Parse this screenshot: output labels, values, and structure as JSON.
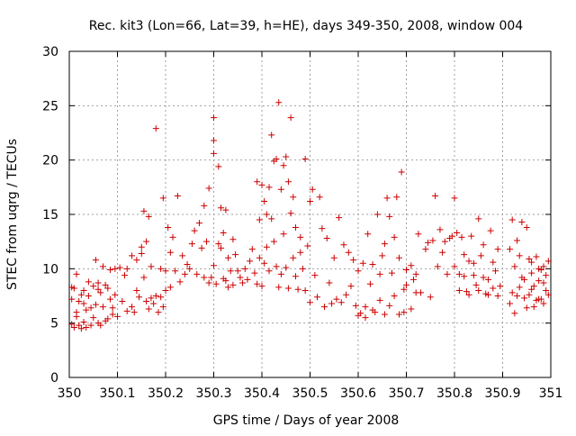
{
  "chart_data": {
    "type": "scatter",
    "title": "Rec. kit3 (Lon=66, Lat=39, h=HE), days 349-350, 2008, window 004",
    "xlabel": "GPS time / Days of year 2008",
    "ylabel": "STEC from uqrg / TECUs",
    "xlim": [
      350,
      351
    ],
    "ylim": [
      0,
      30
    ],
    "xticks": [
      350,
      350.1,
      350.2,
      350.3,
      350.4,
      350.5,
      350.6,
      350.7,
      350.8,
      350.9,
      351
    ],
    "xtick_labels": [
      "350",
      "350.1",
      "350.2",
      "350.3",
      "350.4",
      "350.5",
      "350.6",
      "350.7",
      "350.8",
      "350.9",
      "351"
    ],
    "yticks": [
      0,
      5,
      10,
      15,
      20,
      25,
      30
    ],
    "ytick_labels": [
      "0",
      "5",
      "10",
      "15",
      "20",
      "25",
      "30"
    ],
    "grid": true,
    "marker": "+",
    "color": "#cc0000",
    "points": [
      [
        350.005,
        4.9
      ],
      [
        350.01,
        4.6
      ],
      [
        350.015,
        5.6
      ],
      [
        350.02,
        4.8
      ],
      [
        350.025,
        4.5
      ],
      [
        350.03,
        5.1
      ],
      [
        350.035,
        4.6
      ],
      [
        350.045,
        4.8
      ],
      [
        350.05,
        5.5
      ],
      [
        350.06,
        5.0
      ],
      [
        350.065,
        4.8
      ],
      [
        350.075,
        5.2
      ],
      [
        350.08,
        5.4
      ],
      [
        350.09,
        5.8
      ],
      [
        350.1,
        5.6
      ],
      [
        350.005,
        7.2
      ],
      [
        350.01,
        8.2
      ],
      [
        350.015,
        9.5
      ],
      [
        350.02,
        7.0
      ],
      [
        350.025,
        7.6
      ],
      [
        350.03,
        6.8
      ],
      [
        350.035,
        6.2
      ],
      [
        350.04,
        7.5
      ],
      [
        350.045,
        6.4
      ],
      [
        350.05,
        8.4
      ],
      [
        350.055,
        6.7
      ],
      [
        350.06,
        8.1
      ],
      [
        350.065,
        7.8
      ],
      [
        350.07,
        6.5
      ],
      [
        350.08,
        8.2
      ],
      [
        350.085,
        7.2
      ],
      [
        350.09,
        6.4
      ],
      [
        350.095,
        7.6
      ],
      [
        350.11,
        7.0
      ],
      [
        350.005,
        8.3
      ],
      [
        350.015,
        6.0
      ],
      [
        350.03,
        8.0
      ],
      [
        350.04,
        8.8
      ],
      [
        350.055,
        10.8
      ],
      [
        350.06,
        8.7
      ],
      [
        350.07,
        10.2
      ],
      [
        350.075,
        8.5
      ],
      [
        350.085,
        9.9
      ],
      [
        350.095,
        10.0
      ],
      [
        350.105,
        10.1
      ],
      [
        350.115,
        9.4
      ],
      [
        350.12,
        10.0
      ],
      [
        350.12,
        6.1
      ],
      [
        350.13,
        6.5
      ],
      [
        350.135,
        6.0
      ],
      [
        350.14,
        8.0
      ],
      [
        350.145,
        7.4
      ],
      [
        350.15,
        11.4
      ],
      [
        350.155,
        9.2
      ],
      [
        350.16,
        7.0
      ],
      [
        350.165,
        6.3
      ],
      [
        350.17,
        7.3
      ],
      [
        350.175,
        6.8
      ],
      [
        350.18,
        7.5
      ],
      [
        350.185,
        6.0
      ],
      [
        350.19,
        7.4
      ],
      [
        350.195,
        6.5
      ],
      [
        350.13,
        11.2
      ],
      [
        350.14,
        10.8
      ],
      [
        350.15,
        12.0
      ],
      [
        350.155,
        15.3
      ],
      [
        350.16,
        12.5
      ],
      [
        350.165,
        14.8
      ],
      [
        350.17,
        10.2
      ],
      [
        350.18,
        22.9
      ],
      [
        350.19,
        10.0
      ],
      [
        350.195,
        16.5
      ],
      [
        350.2,
        9.8
      ],
      [
        350.21,
        11.5
      ],
      [
        350.215,
        12.9
      ],
      [
        350.2,
        8.0
      ],
      [
        350.205,
        13.8
      ],
      [
        350.21,
        8.3
      ],
      [
        350.22,
        9.8
      ],
      [
        350.225,
        16.7
      ],
      [
        350.23,
        8.8
      ],
      [
        350.235,
        11.2
      ],
      [
        350.24,
        9.5
      ],
      [
        350.245,
        10.4
      ],
      [
        350.25,
        10.0
      ],
      [
        350.255,
        12.3
      ],
      [
        350.26,
        13.5
      ],
      [
        350.265,
        9.5
      ],
      [
        350.27,
        14.2
      ],
      [
        350.275,
        11.9
      ],
      [
        350.28,
        9.2
      ],
      [
        350.285,
        12.5
      ],
      [
        350.29,
        8.7
      ],
      [
        350.295,
        9.2
      ],
      [
        350.3,
        10.3
      ],
      [
        350.305,
        8.6
      ],
      [
        350.31,
        12.3
      ],
      [
        350.315,
        11.9
      ],
      [
        350.32,
        9.1
      ],
      [
        350.325,
        8.9
      ],
      [
        350.33,
        8.3
      ],
      [
        350.335,
        9.8
      ],
      [
        350.34,
        8.5
      ],
      [
        350.28,
        15.8
      ],
      [
        350.29,
        17.4
      ],
      [
        350.3,
        20.6
      ],
      [
        350.3,
        21.8
      ],
      [
        350.3,
        23.9
      ],
      [
        350.31,
        19.4
      ],
      [
        350.315,
        15.6
      ],
      [
        350.32,
        13.3
      ],
      [
        350.325,
        15.4
      ],
      [
        350.33,
        11.0
      ],
      [
        350.34,
        12.7
      ],
      [
        350.345,
        11.3
      ],
      [
        350.35,
        9.8
      ],
      [
        350.355,
        9.2
      ],
      [
        350.36,
        8.7
      ],
      [
        350.365,
        10.0
      ],
      [
        350.37,
        9.0
      ],
      [
        350.375,
        10.7
      ],
      [
        350.38,
        11.8
      ],
      [
        350.385,
        9.6
      ],
      [
        350.39,
        8.6
      ],
      [
        350.395,
        11.0
      ],
      [
        350.39,
        18.0
      ],
      [
        350.395,
        14.5
      ],
      [
        350.4,
        17.7
      ],
      [
        350.405,
        16.2
      ],
      [
        350.41,
        15.0
      ],
      [
        350.415,
        17.5
      ],
      [
        350.42,
        22.3
      ],
      [
        350.425,
        19.9
      ],
      [
        350.43,
        20.1
      ],
      [
        350.435,
        25.3
      ],
      [
        350.44,
        17.3
      ],
      [
        350.445,
        19.5
      ],
      [
        350.45,
        20.3
      ],
      [
        350.455,
        18.0
      ],
      [
        350.46,
        23.9
      ],
      [
        350.465,
        16.6
      ],
      [
        350.47,
        13.8
      ],
      [
        350.48,
        12.9
      ],
      [
        350.49,
        20.1
      ],
      [
        350.5,
        16.2
      ],
      [
        350.4,
        8.4
      ],
      [
        350.405,
        10.5
      ],
      [
        350.41,
        12.0
      ],
      [
        350.415,
        9.8
      ],
      [
        350.42,
        14.6
      ],
      [
        350.425,
        12.5
      ],
      [
        350.43,
        10.2
      ],
      [
        350.435,
        8.3
      ],
      [
        350.44,
        9.5
      ],
      [
        350.445,
        13.2
      ],
      [
        350.45,
        10.1
      ],
      [
        350.455,
        8.2
      ],
      [
        350.46,
        15.1
      ],
      [
        350.465,
        11.0
      ],
      [
        350.47,
        9.3
      ],
      [
        350.475,
        8.1
      ],
      [
        350.48,
        11.5
      ],
      [
        350.485,
        10.0
      ],
      [
        350.49,
        8.0
      ],
      [
        350.495,
        12.1
      ],
      [
        350.5,
        6.9
      ],
      [
        350.505,
        17.3
      ],
      [
        350.51,
        9.4
      ],
      [
        350.515,
        7.4
      ],
      [
        350.52,
        16.6
      ],
      [
        350.525,
        13.7
      ],
      [
        350.53,
        6.5
      ],
      [
        350.535,
        12.8
      ],
      [
        350.54,
        8.7
      ],
      [
        350.545,
        6.8
      ],
      [
        350.55,
        11.0
      ],
      [
        350.555,
        7.2
      ],
      [
        350.56,
        14.7
      ],
      [
        350.565,
        6.9
      ],
      [
        350.57,
        12.2
      ],
      [
        350.575,
        7.6
      ],
      [
        350.58,
        11.5
      ],
      [
        350.585,
        8.4
      ],
      [
        350.59,
        10.8
      ],
      [
        350.595,
        6.6
      ],
      [
        350.6,
        9.8
      ],
      [
        350.605,
        5.9
      ],
      [
        350.61,
        10.5
      ],
      [
        350.615,
        6.5
      ],
      [
        350.62,
        13.2
      ],
      [
        350.625,
        8.6
      ],
      [
        350.63,
        10.4
      ],
      [
        350.635,
        6.0
      ],
      [
        350.64,
        15.0
      ],
      [
        350.645,
        9.5
      ],
      [
        350.65,
        11.2
      ],
      [
        350.655,
        12.3
      ],
      [
        350.66,
        16.5
      ],
      [
        350.665,
        14.8
      ],
      [
        350.67,
        9.6
      ],
      [
        350.675,
        12.9
      ],
      [
        350.68,
        16.6
      ],
      [
        350.685,
        11.0
      ],
      [
        350.69,
        18.9
      ],
      [
        350.695,
        8.1
      ],
      [
        350.6,
        5.7
      ],
      [
        350.615,
        5.5
      ],
      [
        350.63,
        6.2
      ],
      [
        350.645,
        7.1
      ],
      [
        350.655,
        5.8
      ],
      [
        350.665,
        6.6
      ],
      [
        350.675,
        7.5
      ],
      [
        350.685,
        5.8
      ],
      [
        350.695,
        6.0
      ],
      [
        350.7,
        8.5
      ],
      [
        350.71,
        6.3
      ],
      [
        350.72,
        7.8
      ],
      [
        350.7,
        9.9
      ],
      [
        350.71,
        10.3
      ],
      [
        350.715,
        9.0
      ],
      [
        350.72,
        9.5
      ],
      [
        350.725,
        13.2
      ],
      [
        350.73,
        7.8
      ],
      [
        350.74,
        11.8
      ],
      [
        350.745,
        12.4
      ],
      [
        350.75,
        7.4
      ],
      [
        350.755,
        12.6
      ],
      [
        350.76,
        16.7
      ],
      [
        350.765,
        10.2
      ],
      [
        350.77,
        13.6
      ],
      [
        350.775,
        11.5
      ],
      [
        350.78,
        12.5
      ],
      [
        350.785,
        9.5
      ],
      [
        350.79,
        12.8
      ],
      [
        350.795,
        13.0
      ],
      [
        350.8,
        16.5
      ],
      [
        350.805,
        13.3
      ],
      [
        350.81,
        8.0
      ],
      [
        350.815,
        12.9
      ],
      [
        350.82,
        9.3
      ],
      [
        350.825,
        7.9
      ],
      [
        350.83,
        10.7
      ],
      [
        350.835,
        13.0
      ],
      [
        350.84,
        9.4
      ],
      [
        350.845,
        8.5
      ],
      [
        350.85,
        14.6
      ],
      [
        350.855,
        11.2
      ],
      [
        350.86,
        12.2
      ],
      [
        350.865,
        7.7
      ],
      [
        350.87,
        9.0
      ],
      [
        350.875,
        13.5
      ],
      [
        350.88,
        10.6
      ],
      [
        350.885,
        9.8
      ],
      [
        350.89,
        11.8
      ],
      [
        350.895,
        8.4
      ],
      [
        350.8,
        10.2
      ],
      [
        350.81,
        9.5
      ],
      [
        350.82,
        11.3
      ],
      [
        350.83,
        7.6
      ],
      [
        350.84,
        10.5
      ],
      [
        350.85,
        8.0
      ],
      [
        350.86,
        9.2
      ],
      [
        350.87,
        7.6
      ],
      [
        350.88,
        8.2
      ],
      [
        350.89,
        7.5
      ],
      [
        350.915,
        6.8
      ],
      [
        350.92,
        14.5
      ],
      [
        350.925,
        5.9
      ],
      [
        350.93,
        12.6
      ],
      [
        350.935,
        11.2
      ],
      [
        350.94,
        14.3
      ],
      [
        350.945,
        7.3
      ],
      [
        350.95,
        13.8
      ],
      [
        350.955,
        10.9
      ],
      [
        350.96,
        9.6
      ],
      [
        350.965,
        8.4
      ],
      [
        350.97,
        11.1
      ],
      [
        350.975,
        7.2
      ],
      [
        350.98,
        9.9
      ],
      [
        350.985,
        10.2
      ],
      [
        350.99,
        8.0
      ],
      [
        350.995,
        10.7
      ],
      [
        350.915,
        11.8
      ],
      [
        350.925,
        10.2
      ],
      [
        350.93,
        7.5
      ],
      [
        350.94,
        9.2
      ],
      [
        350.95,
        6.4
      ],
      [
        350.955,
        7.6
      ],
      [
        350.96,
        8.1
      ],
      [
        350.965,
        6.5
      ],
      [
        350.97,
        7.1
      ],
      [
        350.975,
        8.9
      ],
      [
        350.98,
        7.2
      ],
      [
        350.985,
        6.8
      ],
      [
        350.99,
        9.4
      ],
      [
        350.995,
        7.6
      ],
      [
        350.92,
        7.8
      ],
      [
        350.935,
        8.3
      ],
      [
        350.945,
        9.0
      ],
      [
        350.96,
        10.6
      ],
      [
        350.975,
        10.0
      ],
      [
        350.985,
        8.7
      ]
    ]
  }
}
